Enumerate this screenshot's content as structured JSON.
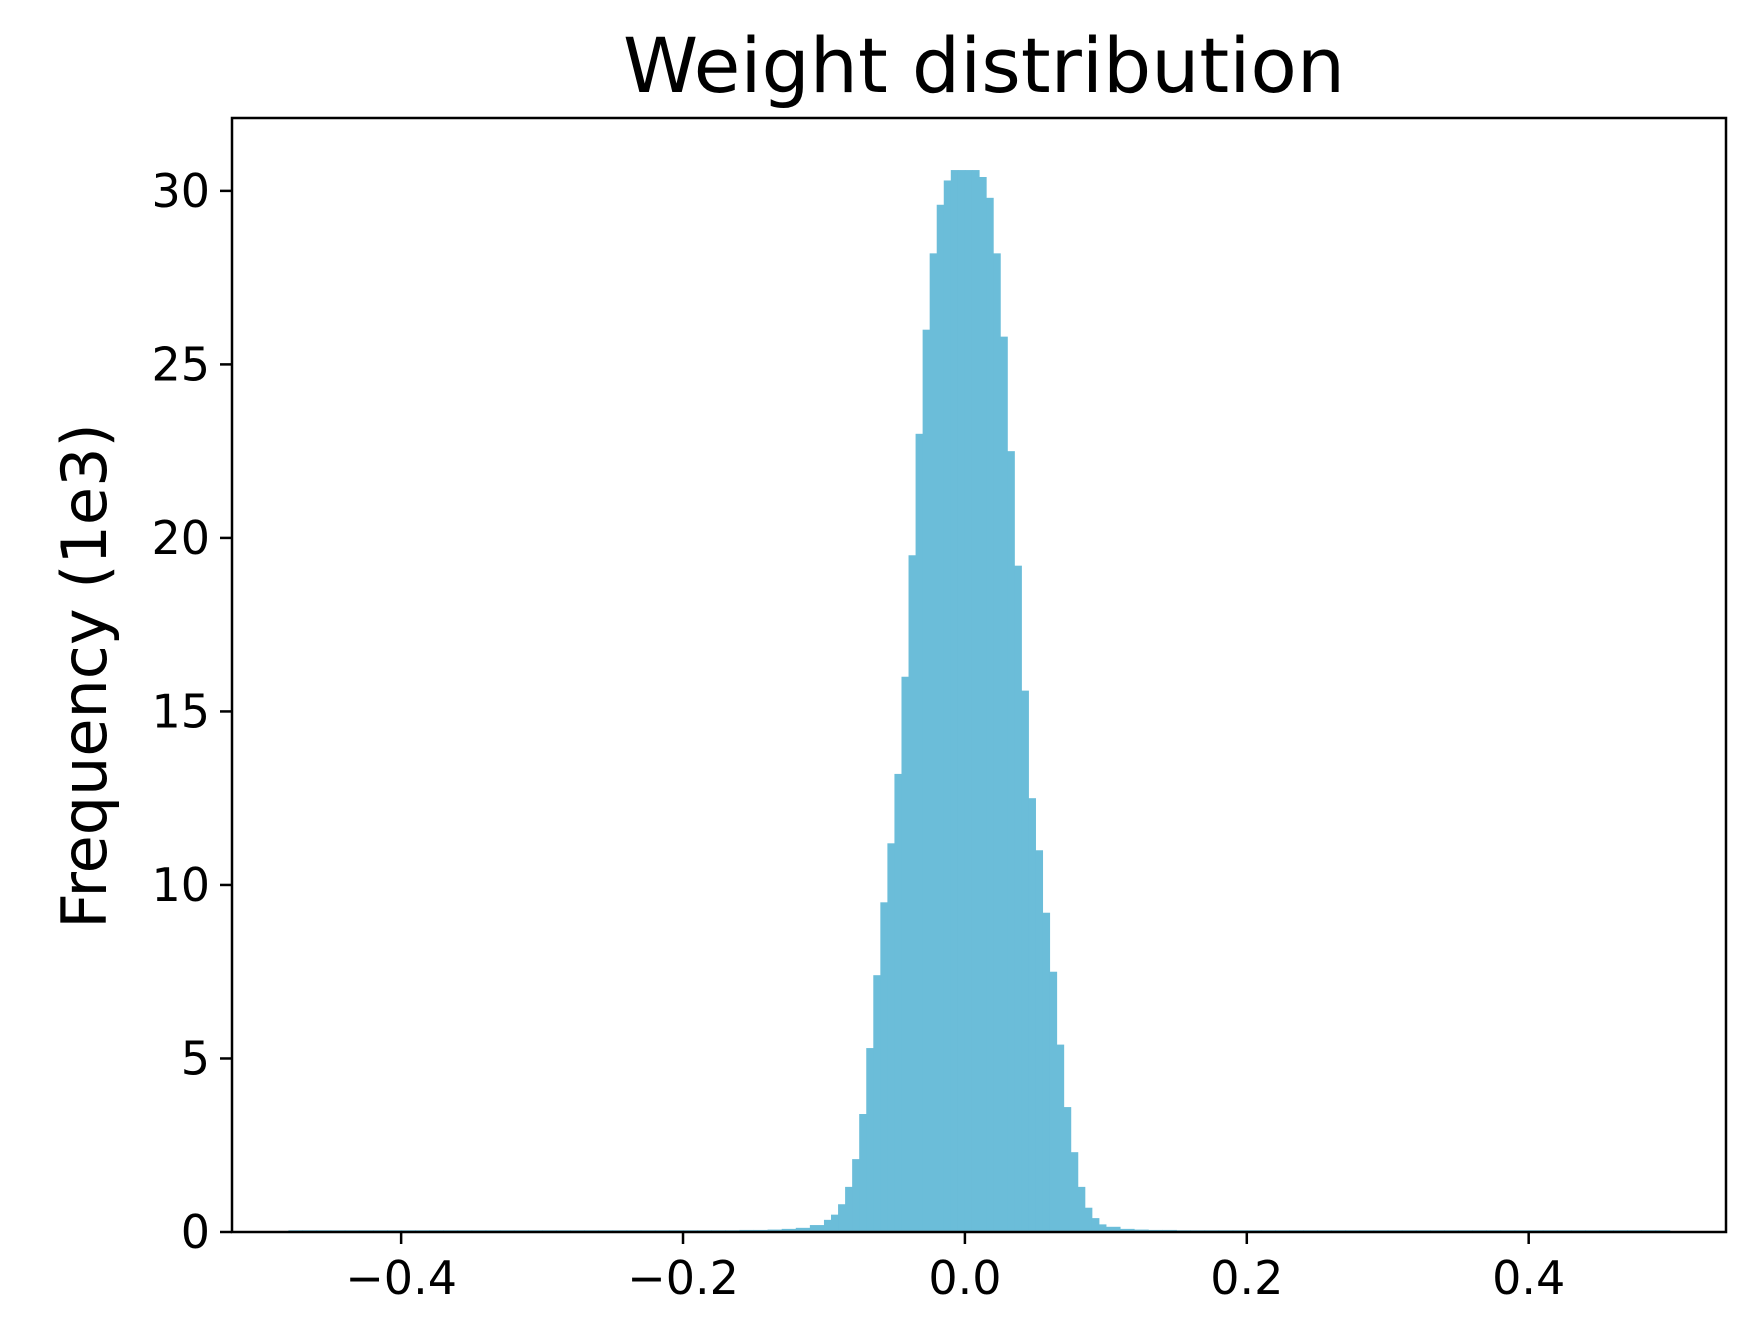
{
  "chart_data": {
    "type": "bar",
    "title": "Weight distribution",
    "xlabel": "",
    "ylabel": "Frequency (1e3)",
    "xlim": [
      -0.52,
      0.54
    ],
    "ylim": [
      0,
      32.1
    ],
    "x_ticks": [
      -0.4,
      -0.2,
      0.0,
      0.2,
      0.4
    ],
    "x_tick_labels": [
      "−0.4",
      "−0.2",
      "0.0",
      "0.2",
      "0.4"
    ],
    "y_ticks": [
      0,
      5,
      10,
      15,
      20,
      25,
      30
    ],
    "y_tick_labels": [
      "0",
      "5",
      "10",
      "15",
      "20",
      "25",
      "30"
    ],
    "grid": false,
    "legend": "none",
    "bar_color": "#6bbdd9",
    "series": [
      {
        "x": [
          -0.48,
          -0.47,
          -0.46,
          -0.45,
          -0.44,
          -0.43,
          -0.42,
          -0.41,
          -0.4,
          -0.39,
          -0.38,
          -0.37,
          -0.36,
          -0.35,
          -0.34,
          -0.33,
          -0.32,
          -0.31,
          -0.3,
          -0.29,
          -0.28,
          -0.27,
          -0.26,
          -0.25,
          -0.24,
          -0.23,
          -0.22,
          -0.21,
          -0.2,
          -0.19,
          -0.18,
          -0.17,
          -0.16,
          -0.15,
          -0.14,
          -0.13,
          -0.12,
          -0.11,
          -0.1,
          -0.095,
          -0.09,
          -0.085,
          -0.08,
          -0.075,
          -0.07,
          -0.065,
          -0.06,
          -0.055,
          -0.05,
          -0.045,
          -0.04,
          -0.035,
          -0.03,
          -0.025,
          -0.02,
          -0.015,
          -0.01,
          -0.005,
          0.0,
          0.005,
          0.01,
          0.015,
          0.02,
          0.025,
          0.03,
          0.035,
          0.04,
          0.045,
          0.05,
          0.055,
          0.06,
          0.065,
          0.07,
          0.075,
          0.08,
          0.085,
          0.09,
          0.095,
          0.1,
          0.11,
          0.12,
          0.13,
          0.14,
          0.15,
          0.16,
          0.17,
          0.18,
          0.19,
          0.2,
          0.21,
          0.22,
          0.23,
          0.24,
          0.25,
          0.26,
          0.27,
          0.28,
          0.29,
          0.3,
          0.31,
          0.32,
          0.33,
          0.34,
          0.35,
          0.36,
          0.37,
          0.38,
          0.39,
          0.4,
          0.41,
          0.42,
          0.43,
          0.44,
          0.45,
          0.46,
          0.47,
          0.48,
          0.49
        ],
        "values": [
          0.05,
          0.05,
          0.05,
          0.05,
          0.05,
          0.05,
          0.05,
          0.05,
          0.05,
          0.05,
          0.05,
          0.05,
          0.05,
          0.05,
          0.05,
          0.05,
          0.05,
          0.05,
          0.05,
          0.05,
          0.05,
          0.05,
          0.05,
          0.05,
          0.05,
          0.05,
          0.05,
          0.05,
          0.05,
          0.05,
          0.05,
          0.05,
          0.06,
          0.06,
          0.07,
          0.09,
          0.12,
          0.2,
          0.35,
          0.5,
          0.8,
          1.3,
          2.1,
          3.4,
          5.3,
          7.4,
          9.5,
          11.2,
          13.2,
          16.0,
          19.5,
          23.0,
          26.0,
          28.2,
          29.6,
          30.3,
          30.6,
          30.6,
          30.6,
          30.6,
          30.4,
          29.8,
          28.2,
          25.8,
          22.5,
          19.2,
          15.6,
          12.5,
          11.0,
          9.2,
          7.5,
          5.4,
          3.6,
          2.3,
          1.3,
          0.7,
          0.4,
          0.22,
          0.15,
          0.09,
          0.07,
          0.06,
          0.06,
          0.05,
          0.05,
          0.05,
          0.05,
          0.05,
          0.05,
          0.05,
          0.05,
          0.05,
          0.05,
          0.05,
          0.05,
          0.05,
          0.05,
          0.05,
          0.05,
          0.05,
          0.05,
          0.05,
          0.05,
          0.05,
          0.05,
          0.05,
          0.05,
          0.05,
          0.05,
          0.05,
          0.05,
          0.05,
          0.05,
          0.05,
          0.05,
          0.05,
          0.05,
          0.05
        ]
      }
    ]
  }
}
